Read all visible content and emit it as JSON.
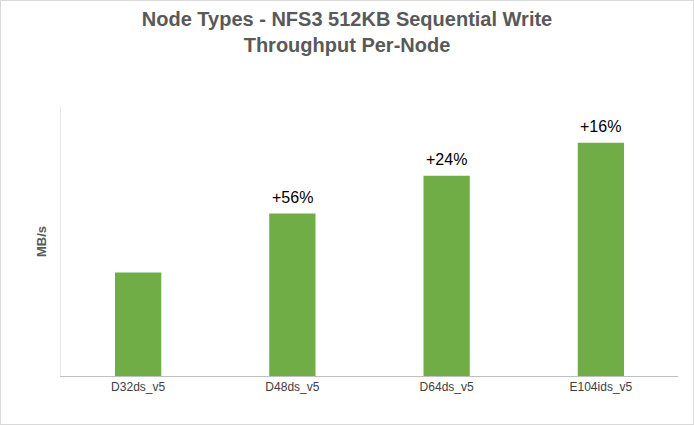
{
  "chart_data": {
    "type": "bar",
    "title": "Node Types - NFS3 512KB Sequential Write\nThroughput Per-Node",
    "y_label": "MB/s",
    "categories": [
      "D32ds_v5",
      "D48ds_v5",
      "D64ds_v5",
      "E104ids_v5"
    ],
    "values": [
      104,
      163,
      201,
      234
    ],
    "color": "#70ad47",
    "ylim": [
      0,
      270
    ],
    "tick_labels": "x",
    "grid": false,
    "annotations": [
      {
        "category": "D48ds_v5",
        "text": "+56%"
      },
      {
        "category": "D64ds_v5",
        "text": "+24%"
      },
      {
        "category": "E104ids_v5",
        "text": "+16%"
      }
    ]
  }
}
